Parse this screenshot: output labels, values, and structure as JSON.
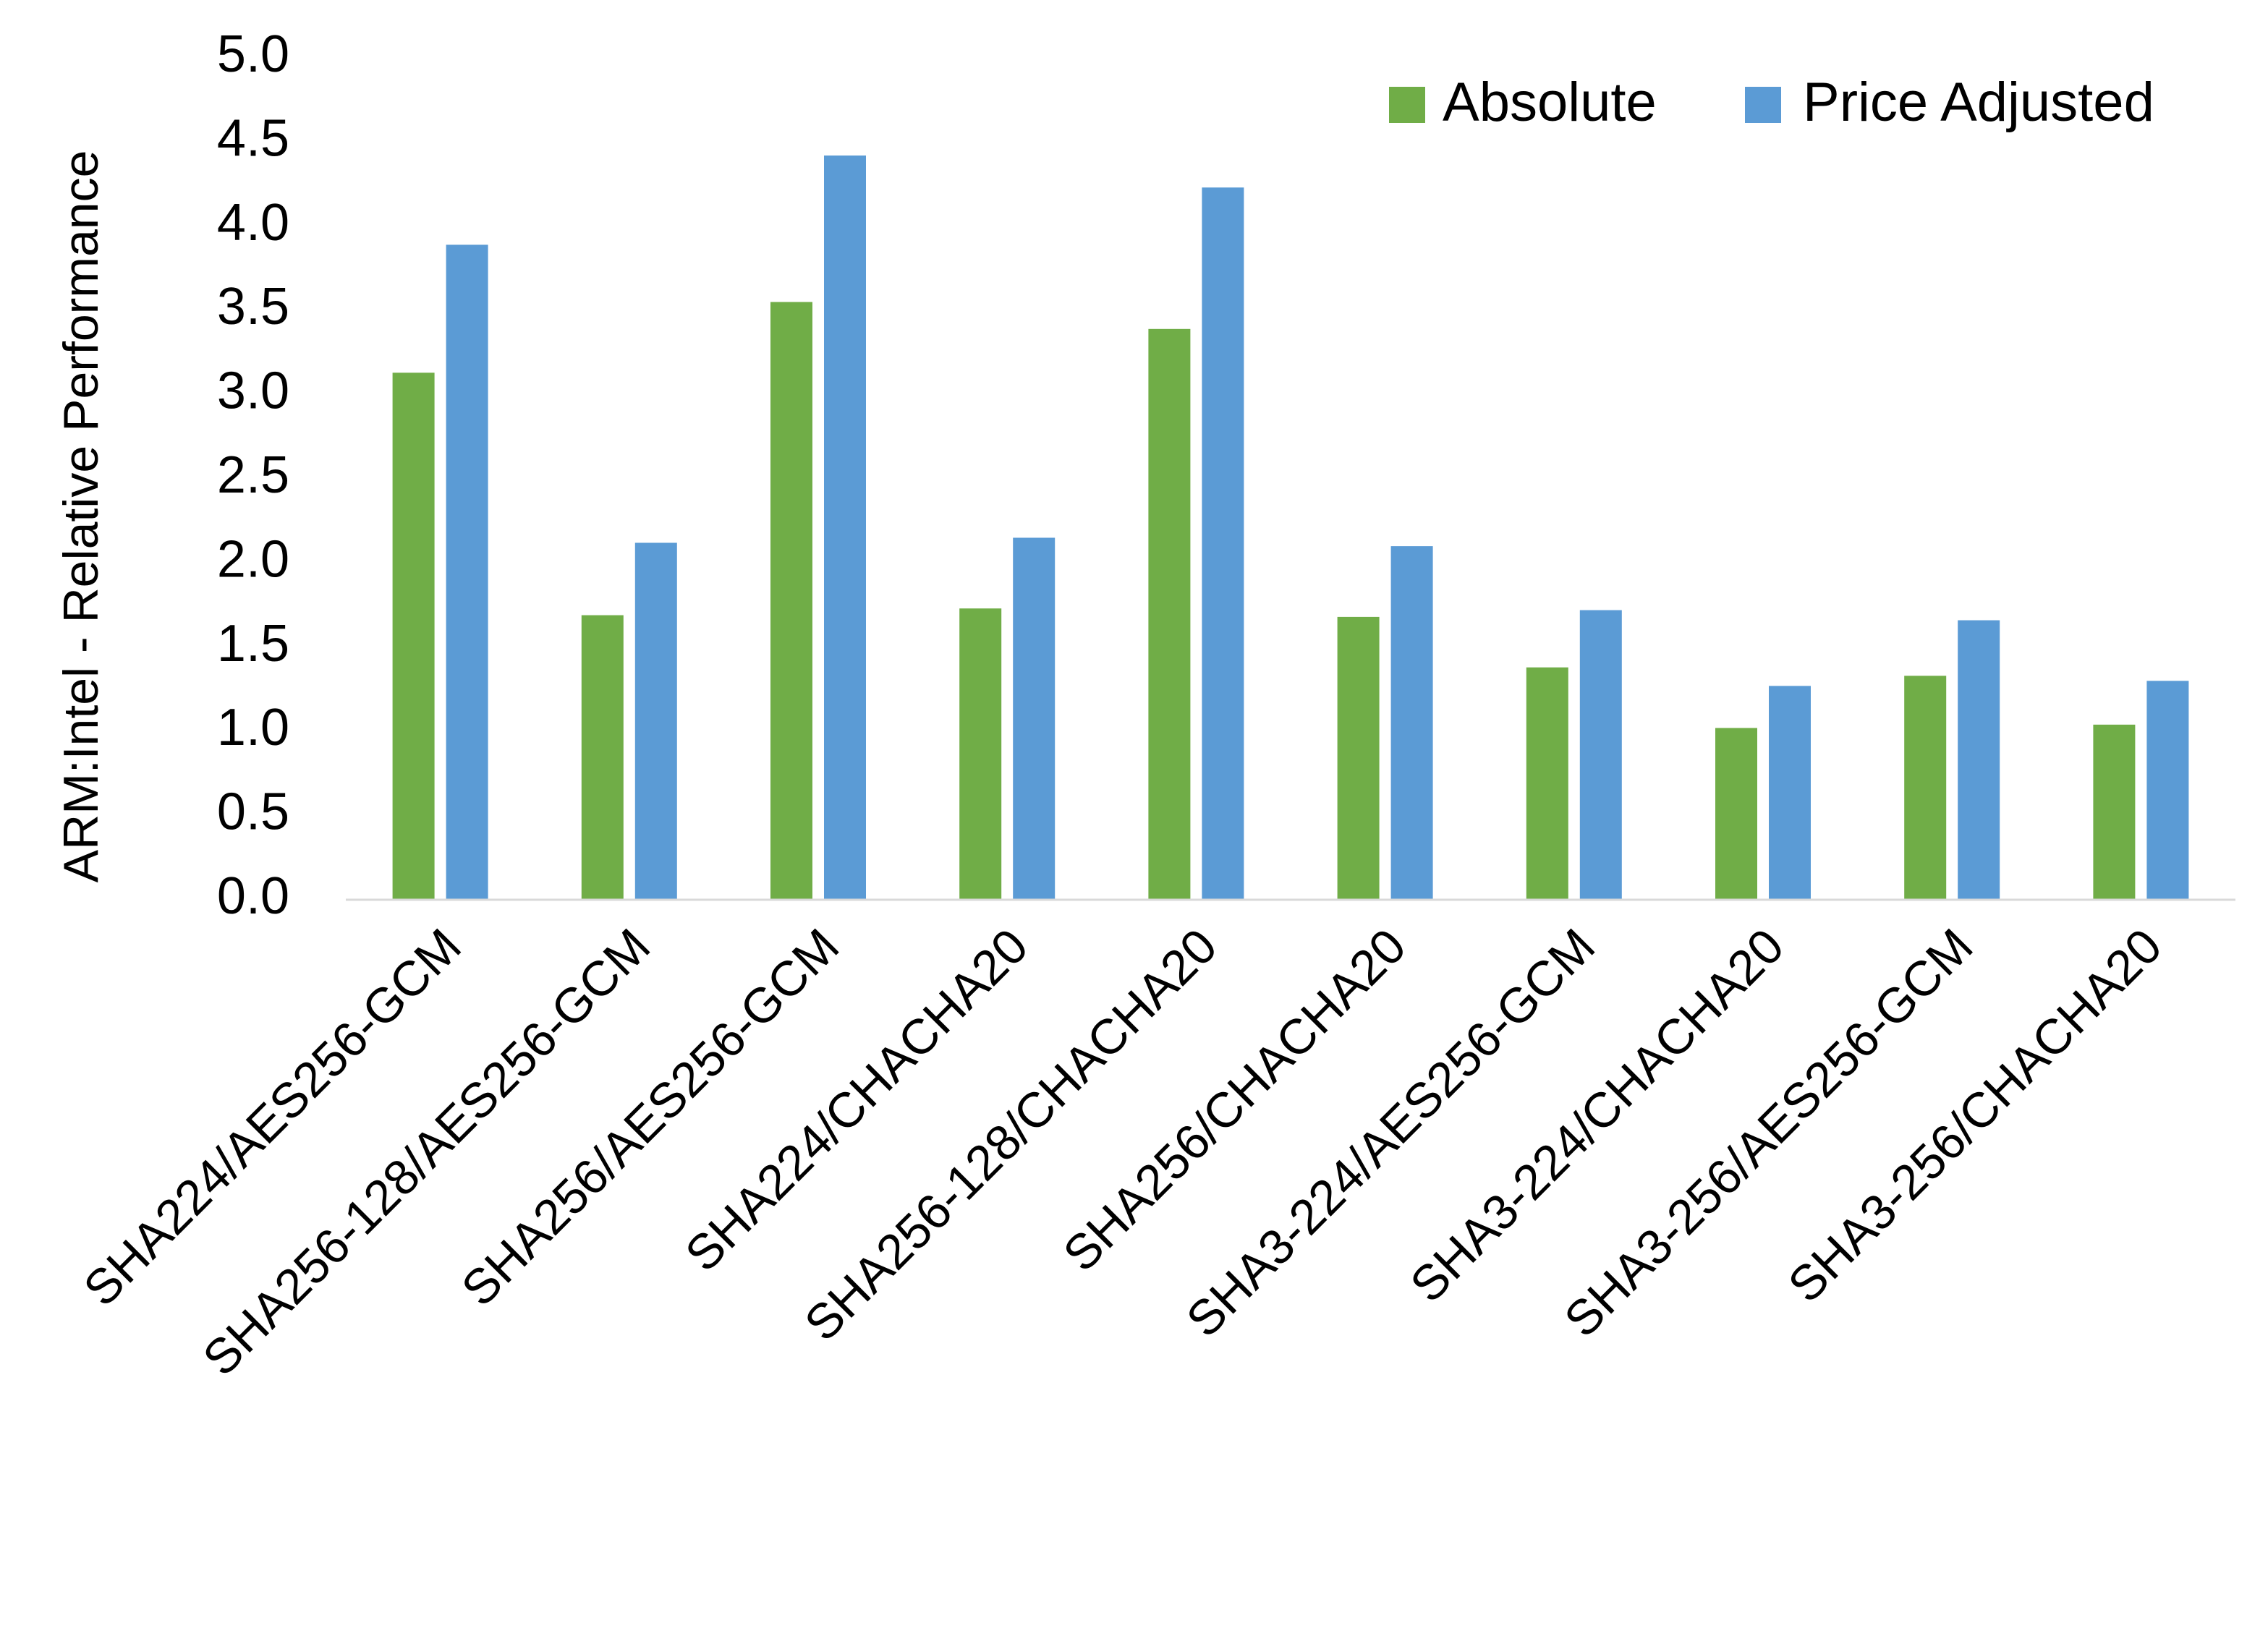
{
  "chart_data": {
    "type": "bar",
    "y_label": "ARM:Intel - Relative Performance",
    "categories": [
      "SHA224/AES256-GCM",
      "SHA256-128/AES256-GCM",
      "SHA256/AES256-GCM",
      "SHA224/CHACHA20",
      "SHA256-128/CHACHA20",
      "SHA256/CHACHA20",
      "SHA3-224/AES256-GCM",
      "SHA3-224/CHACHA20",
      "SHA3-256/AES256-GCM",
      "SHA3-256/CHACHA20"
    ],
    "series": [
      {
        "name": "Absolute",
        "color": "#70ad47",
        "values": [
          3.13,
          1.69,
          3.55,
          1.73,
          3.39,
          1.68,
          1.38,
          1.02,
          1.33,
          1.04
        ]
      },
      {
        "name": "Price Adjusted",
        "color": "#5b9bd5",
        "values": [
          3.89,
          2.12,
          4.42,
          2.15,
          4.23,
          2.1,
          1.72,
          1.27,
          1.66,
          1.3
        ]
      }
    ],
    "ylim": [
      0,
      5
    ],
    "yticks": [
      {
        "value": 0,
        "label": "0.0"
      },
      0.5,
      {
        "value": 1,
        "label": "1.0"
      },
      1.5,
      {
        "value": 2,
        "label": "2.0"
      },
      2.5,
      {
        "value": 3,
        "label": "3.0"
      },
      3.5,
      {
        "value": 4,
        "label": "4.0"
      },
      4.5,
      {
        "value": 5,
        "label": "5.0"
      }
    ],
    "grid": false,
    "legend": "top-right"
  }
}
